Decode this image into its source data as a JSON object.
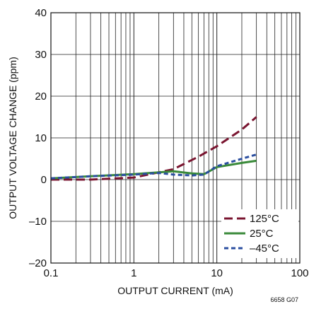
{
  "chart_data": {
    "type": "line",
    "title": "",
    "xlabel": "OUTPUT CURRENT (mA)",
    "ylabel": "OUTPUT VOLTAGE CHANGE (ppm)",
    "x_scale": "log",
    "xlim": [
      0.1,
      100
    ],
    "ylim": [
      -20,
      40
    ],
    "x_ticks": [
      0.1,
      1,
      10,
      100
    ],
    "x_tick_labels": [
      "0.1",
      "1",
      "10",
      "100"
    ],
    "y_ticks": [
      -20,
      -10,
      0,
      10,
      20,
      30,
      40
    ],
    "y_tick_labels": [
      "–20",
      "–10",
      "0",
      "10",
      "20",
      "30",
      "40"
    ],
    "grid": true,
    "legend_position": "bottom-right",
    "figure_id": "6658 G07",
    "series": [
      {
        "name": "125°C",
        "color": "#7a1530",
        "dash": "long-dash",
        "points": [
          [
            0.1,
            0
          ],
          [
            0.3,
            0
          ],
          [
            1,
            0.5
          ],
          [
            3,
            2.5
          ],
          [
            6,
            5.5
          ],
          [
            10,
            8
          ],
          [
            20,
            12
          ],
          [
            30,
            15
          ]
        ]
      },
      {
        "name": "25°C",
        "color": "#3a8a3a",
        "dash": "solid",
        "points": [
          [
            0.1,
            0.3
          ],
          [
            0.3,
            0.8
          ],
          [
            1,
            1.3
          ],
          [
            3,
            2
          ],
          [
            5,
            1.5
          ],
          [
            7,
            1.3
          ],
          [
            10,
            3
          ],
          [
            20,
            4
          ],
          [
            30,
            4.5
          ]
        ]
      },
      {
        "name": "–45°C",
        "color": "#2b4fa0",
        "dash": "short-dash",
        "points": [
          [
            0.1,
            0.3
          ],
          [
            0.3,
            0.8
          ],
          [
            1,
            1.2
          ],
          [
            2,
            1.6
          ],
          [
            3,
            1.2
          ],
          [
            5,
            1
          ],
          [
            7,
            1.2
          ],
          [
            10,
            3.2
          ],
          [
            20,
            5
          ],
          [
            30,
            6
          ]
        ]
      }
    ]
  }
}
